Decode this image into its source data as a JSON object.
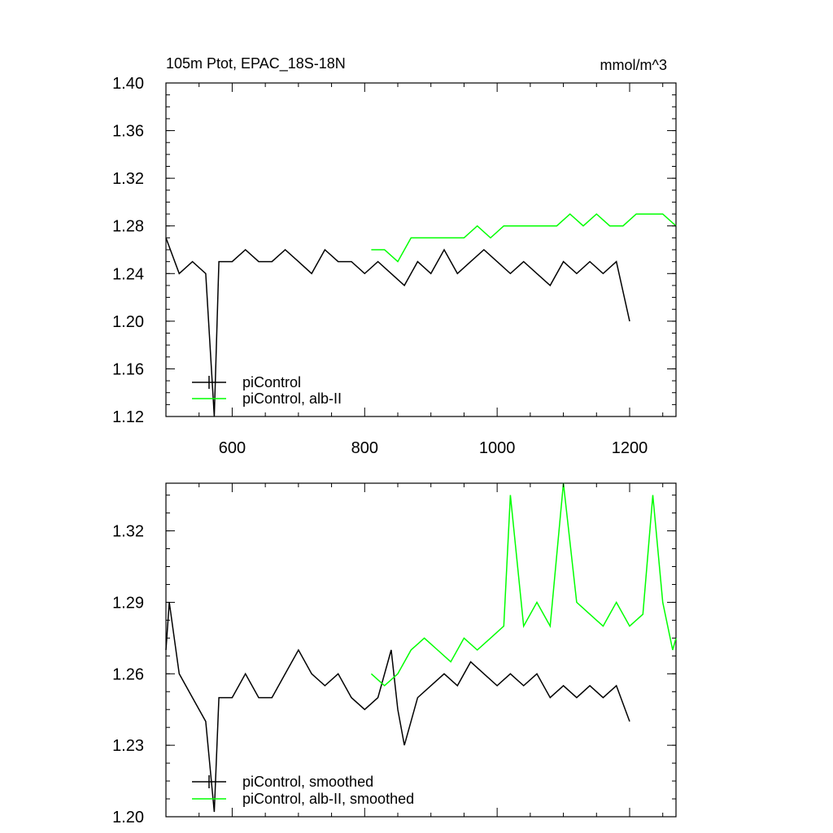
{
  "chart_data": [
    {
      "type": "line",
      "title": "105m Ptot, EPAC_18S-18N",
      "units": "mmol/m^3",
      "xlim": [
        500,
        1270
      ],
      "ylim": [
        1.12,
        1.4
      ],
      "x_ticks": [
        600,
        800,
        1000,
        1200
      ],
      "x_tick_labels": [
        "600",
        "800",
        "1000",
        "1200"
      ],
      "y_ticks": [
        1.12,
        1.16,
        1.2,
        1.24,
        1.28,
        1.32,
        1.36,
        1.4
      ],
      "y_tick_labels": [
        "1.12",
        "1.16",
        "1.20",
        "1.24",
        "1.28",
        "1.32",
        "1.36",
        "1.40"
      ],
      "legend_position": "bottom-left",
      "grid": false,
      "series": [
        {
          "name": "piControl",
          "color": "#000000",
          "x": [
            500,
            520,
            540,
            560,
            573,
            580,
            600,
            620,
            640,
            660,
            680,
            700,
            720,
            740,
            760,
            780,
            800,
            820,
            840,
            860,
            880,
            900,
            920,
            940,
            960,
            980,
            1000,
            1020,
            1040,
            1060,
            1080,
            1100,
            1120,
            1140,
            1160,
            1180,
            1200
          ],
          "values": [
            1.27,
            1.24,
            1.25,
            1.24,
            1.12,
            1.25,
            1.25,
            1.26,
            1.25,
            1.25,
            1.26,
            1.25,
            1.24,
            1.26,
            1.25,
            1.25,
            1.24,
            1.25,
            1.24,
            1.23,
            1.25,
            1.24,
            1.26,
            1.24,
            1.25,
            1.26,
            1.25,
            1.24,
            1.25,
            1.24,
            1.23,
            1.25,
            1.24,
            1.25,
            1.24,
            1.25,
            1.2
          ]
        },
        {
          "name": "piControl, alb-II",
          "color": "#00ff00",
          "x": [
            810,
            830,
            850,
            870,
            890,
            910,
            930,
            950,
            970,
            990,
            1010,
            1030,
            1050,
            1070,
            1090,
            1110,
            1130,
            1150,
            1170,
            1190,
            1210,
            1230,
            1250,
            1270
          ],
          "values": [
            1.26,
            1.26,
            1.25,
            1.27,
            1.27,
            1.27,
            1.27,
            1.27,
            1.28,
            1.27,
            1.28,
            1.28,
            1.28,
            1.28,
            1.28,
            1.29,
            1.28,
            1.29,
            1.28,
            1.28,
            1.29,
            1.29,
            1.29,
            1.28
          ]
        }
      ]
    },
    {
      "type": "line",
      "xlim": [
        500,
        1270
      ],
      "ylim": [
        1.2,
        1.34
      ],
      "x_ticks": [
        600,
        800,
        1000,
        1200
      ],
      "y_ticks": [
        1.2,
        1.23,
        1.26,
        1.29,
        1.32
      ],
      "y_tick_labels": [
        "1.20",
        "1.23",
        "1.26",
        "1.29",
        "1.32"
      ],
      "legend_position": "bottom-left",
      "grid": false,
      "series": [
        {
          "name": "piControl, smoothed",
          "color": "#000000",
          "x": [
            500,
            505,
            520,
            540,
            560,
            573,
            580,
            600,
            620,
            640,
            660,
            680,
            700,
            720,
            740,
            760,
            780,
            800,
            820,
            840,
            850,
            860,
            880,
            900,
            920,
            940,
            960,
            980,
            1000,
            1020,
            1040,
            1060,
            1080,
            1100,
            1120,
            1140,
            1160,
            1180,
            1200
          ],
          "values": [
            1.27,
            1.29,
            1.26,
            1.25,
            1.24,
            1.202,
            1.25,
            1.25,
            1.26,
            1.25,
            1.25,
            1.26,
            1.27,
            1.26,
            1.255,
            1.26,
            1.25,
            1.245,
            1.25,
            1.27,
            1.245,
            1.23,
            1.25,
            1.255,
            1.26,
            1.255,
            1.265,
            1.26,
            1.255,
            1.26,
            1.255,
            1.26,
            1.25,
            1.255,
            1.25,
            1.255,
            1.25,
            1.255,
            1.24
          ]
        },
        {
          "name": "piControl, alb-II, smoothed",
          "color": "#00ff00",
          "x": [
            810,
            830,
            850,
            870,
            890,
            910,
            930,
            950,
            970,
            990,
            1010,
            1020,
            1040,
            1060,
            1080,
            1100,
            1120,
            1140,
            1160,
            1180,
            1200,
            1220,
            1235,
            1250,
            1265,
            1270
          ],
          "values": [
            1.26,
            1.255,
            1.26,
            1.27,
            1.275,
            1.27,
            1.265,
            1.275,
            1.27,
            1.275,
            1.28,
            1.335,
            1.28,
            1.29,
            1.28,
            1.34,
            1.29,
            1.285,
            1.28,
            1.29,
            1.28,
            1.285,
            1.335,
            1.29,
            1.27,
            1.275
          ]
        }
      ]
    }
  ]
}
